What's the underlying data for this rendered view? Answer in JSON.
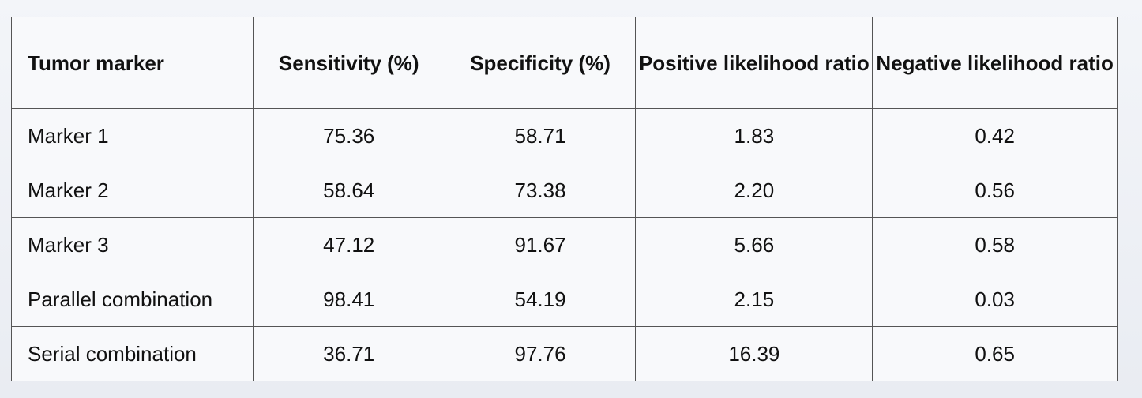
{
  "table": {
    "headers": [
      "Tumor marker",
      "Sensitivity (%)",
      "Specificity (%)",
      "Positive likelihood ratio",
      "Negative likelihood ratio"
    ],
    "rows": [
      [
        "Marker 1",
        "75.36",
        "58.71",
        "1.83",
        "0.42"
      ],
      [
        "Marker 2",
        "58.64",
        "73.38",
        "2.20",
        "0.56"
      ],
      [
        "Marker 3",
        "47.12",
        "91.67",
        "5.66",
        "0.58"
      ],
      [
        "Parallel combination",
        "98.41",
        "54.19",
        "2.15",
        "0.03"
      ],
      [
        "Serial combination",
        "36.71",
        "97.76",
        "16.39",
        "0.65"
      ]
    ]
  }
}
